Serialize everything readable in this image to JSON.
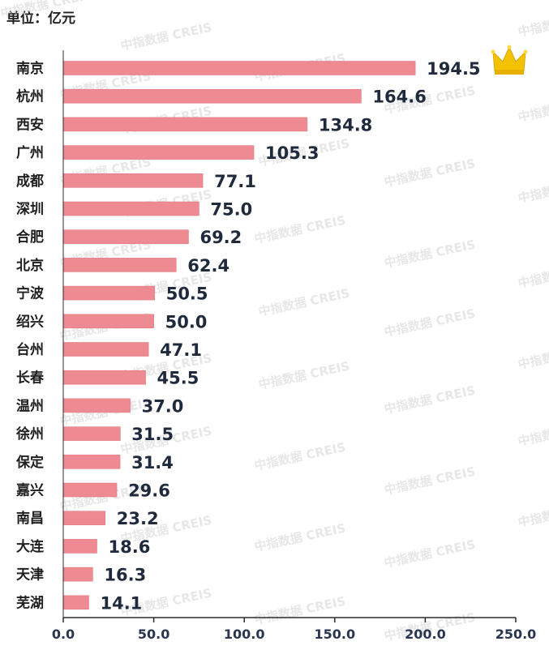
{
  "unit_label": "单位：亿元",
  "watermark": "中指数据 CREIS",
  "colors": {
    "bar": "#ee8a92",
    "bar_edge": "#e07a83",
    "axis": "#2b2b2b",
    "crown": "#f5c200"
  },
  "crown_icon": "crown-icon",
  "chart_data": {
    "type": "bar",
    "orientation": "horizontal",
    "categories": [
      "南京",
      "杭州",
      "西安",
      "广州",
      "成都",
      "深圳",
      "合肥",
      "北京",
      "宁波",
      "绍兴",
      "台州",
      "长春",
      "温州",
      "徐州",
      "保定",
      "嘉兴",
      "南昌",
      "大连",
      "天津",
      "芜湖"
    ],
    "values": [
      194.5,
      164.6,
      134.8,
      105.3,
      77.1,
      75.0,
      69.2,
      62.4,
      50.5,
      50.0,
      47.1,
      45.5,
      37.0,
      31.5,
      31.4,
      29.6,
      23.2,
      18.6,
      16.3,
      14.1
    ],
    "value_labels": [
      "194.5",
      "164.6",
      "134.8",
      "105.3",
      "77.1",
      "75.0",
      "69.2",
      "62.4",
      "50.5",
      "50.0",
      "47.1",
      "45.5",
      "37.0",
      "31.5",
      "31.4",
      "29.6",
      "23.2",
      "18.6",
      "16.3",
      "14.1"
    ],
    "xlim": [
      0,
      250
    ],
    "xticks": [
      "0.0",
      "50.0",
      "100.0",
      "150.0",
      "200.0",
      "250.0"
    ],
    "grid": false,
    "legend": "none"
  }
}
